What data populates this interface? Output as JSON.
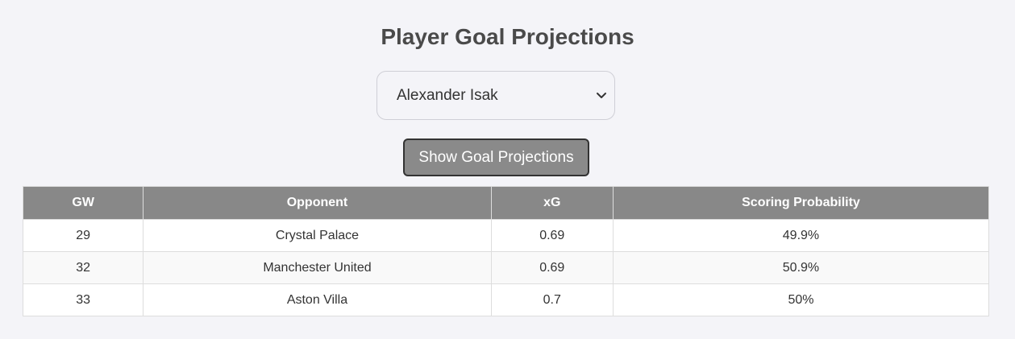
{
  "page": {
    "title": "Player Goal Projections"
  },
  "player_select": {
    "selected": "Alexander Isak",
    "icon": "chevron-down-icon"
  },
  "actions": {
    "show_label": "Show Goal Projections"
  },
  "table": {
    "headers": [
      "GW",
      "Opponent",
      "xG",
      "Scoring Probability"
    ],
    "rows": [
      {
        "gw": "29",
        "opponent": "Crystal Palace",
        "xg": "0.69",
        "prob": "49.9%"
      },
      {
        "gw": "32",
        "opponent": "Manchester United",
        "xg": "0.69",
        "prob": "50.9%"
      },
      {
        "gw": "33",
        "opponent": "Aston Villa",
        "xg": "0.7",
        "prob": "50%"
      }
    ]
  },
  "colors": {
    "header_bg": "#888888",
    "button_bg": "#8a8a8a",
    "page_bg": "#f4f4f8"
  }
}
